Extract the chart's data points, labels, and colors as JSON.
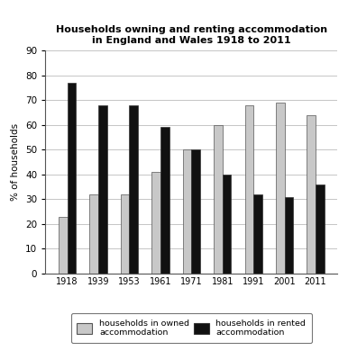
{
  "title_line1": "Households owning and renting accommodation",
  "title_line2": "in England and Wales 1918 to 2011",
  "years": [
    "1918",
    "1939",
    "1953",
    "1961",
    "1971",
    "1981",
    "1991",
    "2001",
    "2011"
  ],
  "owned": [
    23,
    32,
    32,
    41,
    50,
    60,
    68,
    69,
    64
  ],
  "rented": [
    77,
    68,
    68,
    59,
    50,
    40,
    32,
    31,
    36
  ],
  "owned_color": "#c8c8c8",
  "rented_color": "#111111",
  "ylabel": "% of households",
  "ylim": [
    0,
    90
  ],
  "yticks": [
    0,
    10,
    20,
    30,
    40,
    50,
    60,
    70,
    80,
    90
  ],
  "legend_owned": "households in owned\naccommodation",
  "legend_rented": "households in rented\naccommodation",
  "bar_width": 0.28,
  "grid_color": "#bbbbbb"
}
